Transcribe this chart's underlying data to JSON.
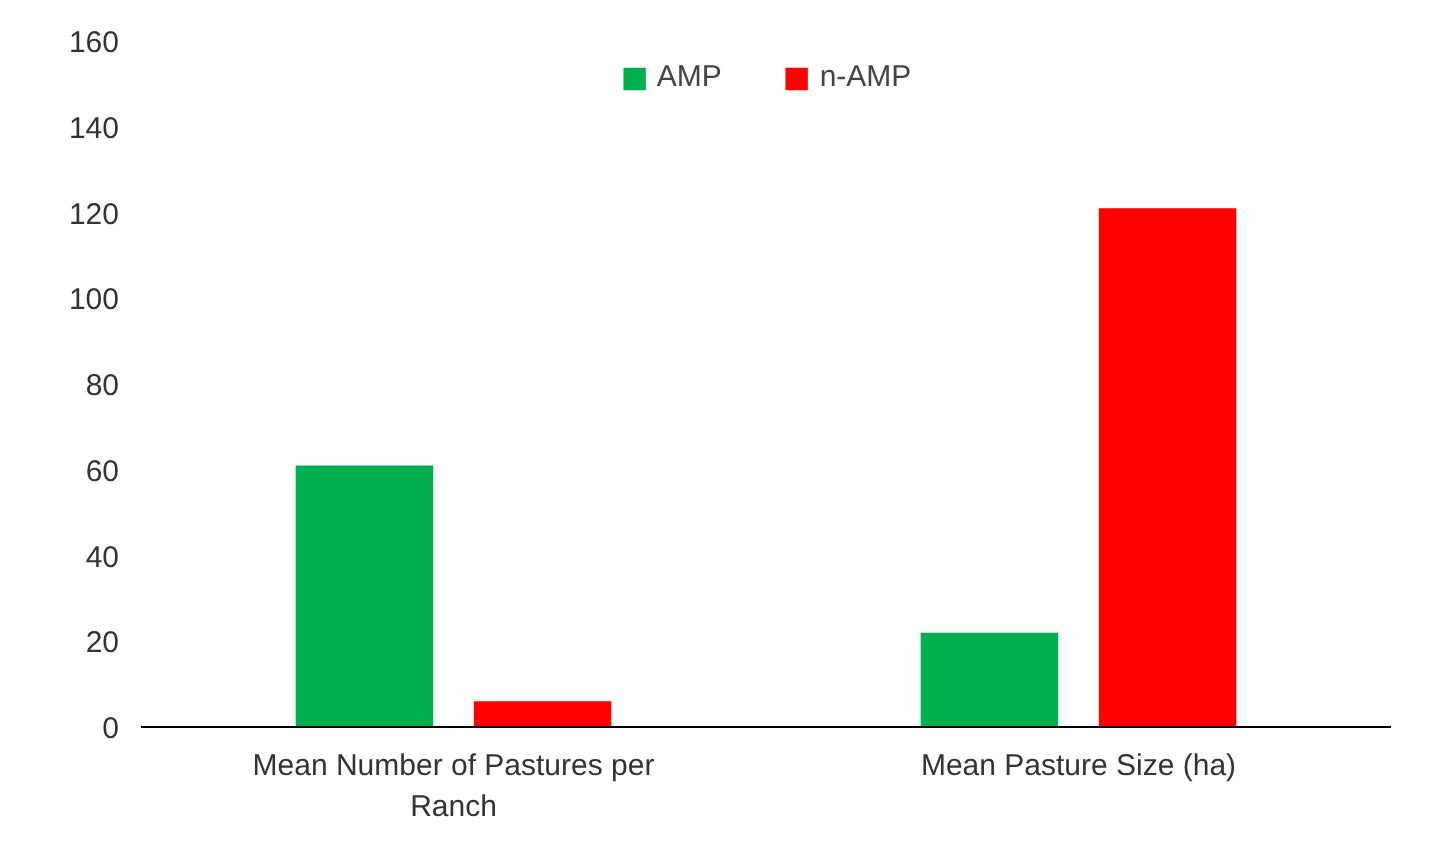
{
  "chart_data": {
    "type": "bar",
    "categories": [
      "Mean Number of Pastures per Ranch",
      "Mean Pasture Size (ha)"
    ],
    "series": [
      {
        "name": "AMP",
        "color": "#00b050",
        "values": [
          61,
          22
        ]
      },
      {
        "name": "n-AMP",
        "color": "#ff0000",
        "values": [
          6,
          121
        ]
      }
    ],
    "ylim": [
      0,
      160
    ],
    "yticks": [
      0,
      20,
      40,
      60,
      80,
      100,
      120,
      140,
      160
    ],
    "grid": false,
    "legend": "top"
  }
}
